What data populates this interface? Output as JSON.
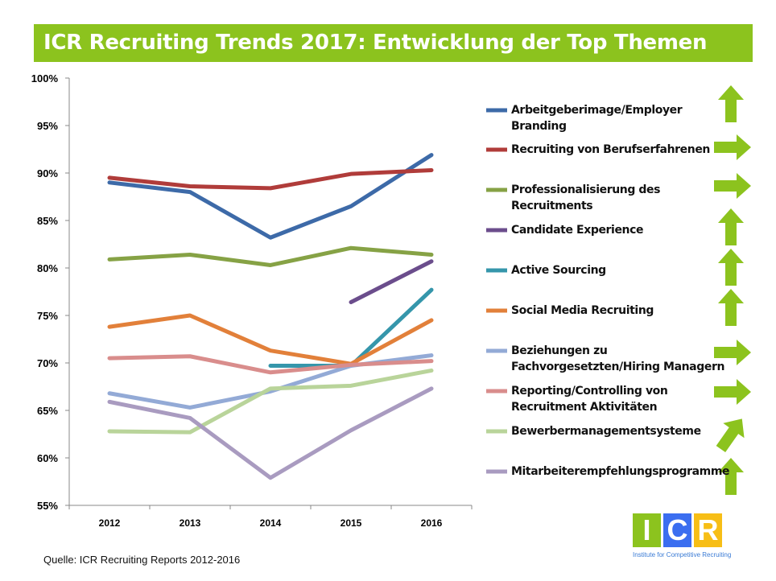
{
  "title": "ICR Recruiting Trends 2017: Entwicklung der Top Themen",
  "source": "Quelle: ICR Recruiting Reports 2012-2016",
  "logo": {
    "letters": [
      "I",
      "C",
      "R"
    ],
    "colors": [
      "#8cc31e",
      "#3b6ef0",
      "#f7be16"
    ],
    "tagline": "Institute for Competitive Recruiting"
  },
  "chart_data": {
    "type": "line",
    "x": [
      "2012",
      "2013",
      "2014",
      "2015",
      "2016"
    ],
    "ylim": [
      55,
      100
    ],
    "yticks": [
      55,
      60,
      65,
      70,
      75,
      80,
      85,
      90,
      95,
      100
    ],
    "ytick_format": "%",
    "grid": false,
    "legend_position": "right",
    "series": [
      {
        "name": "Arbeitgeberimage/Employer Branding",
        "color": "#3d6aa8",
        "trend": "up",
        "values": [
          89.0,
          88.0,
          83.2,
          86.5,
          91.9
        ]
      },
      {
        "name": "Recruiting von Berufserfahrenen",
        "color": "#b03c3a",
        "trend": "right",
        "values": [
          89.5,
          88.6,
          88.4,
          89.9,
          90.3
        ]
      },
      {
        "name": "Professionalisierung des Recruitments",
        "color": "#86a245",
        "trend": "right",
        "values": [
          80.9,
          81.4,
          80.3,
          82.1,
          81.4
        ]
      },
      {
        "name": "Candidate Experience",
        "color": "#6b4d8c",
        "trend": "up",
        "values": [
          null,
          null,
          null,
          76.4,
          80.7
        ]
      },
      {
        "name": "Active Sourcing",
        "color": "#3596ab",
        "trend": "up",
        "values": [
          null,
          null,
          69.7,
          69.7,
          77.7
        ]
      },
      {
        "name": "Social Media Recruiting",
        "color": "#e2803a",
        "trend": "up",
        "values": [
          73.8,
          75.0,
          71.3,
          69.9,
          74.5
        ]
      },
      {
        "name": "Beziehungen zu Fachvorgesetzten/Hiring Managern",
        "color": "#93aad6",
        "trend": "right",
        "values": [
          66.8,
          65.3,
          67.0,
          69.7,
          70.8
        ]
      },
      {
        "name": "Reporting/Controlling von Recruitment Aktivitäten",
        "color": "#d98d8c",
        "trend": "right",
        "values": [
          70.5,
          70.7,
          69.0,
          69.8,
          70.2
        ]
      },
      {
        "name": "Bewerbermanagementsysteme",
        "color": "#b9d49a",
        "trend": "up-right",
        "values": [
          62.8,
          62.7,
          67.3,
          67.6,
          69.2
        ]
      },
      {
        "name": "Mitarbeiterempfehlungsprogramme",
        "color": "#a99bc0",
        "trend": "up",
        "values": [
          65.9,
          64.2,
          57.9,
          62.9,
          67.3
        ]
      }
    ]
  }
}
